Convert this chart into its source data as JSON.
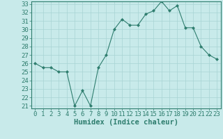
{
  "x": [
    0,
    1,
    2,
    3,
    4,
    5,
    6,
    7,
    8,
    9,
    10,
    11,
    12,
    13,
    14,
    15,
    16,
    17,
    18,
    19,
    20,
    21,
    22,
    23
  ],
  "y": [
    26.0,
    25.5,
    25.5,
    25.0,
    25.0,
    21.0,
    22.8,
    21.0,
    25.5,
    27.0,
    30.0,
    31.2,
    30.5,
    30.5,
    31.8,
    32.2,
    33.3,
    32.2,
    32.8,
    30.2,
    30.2,
    28.0,
    27.0,
    26.5
  ],
  "line_color": "#2e7d6e",
  "marker": "D",
  "marker_size": 2.0,
  "bg_color": "#c8eaea",
  "grid_color": "#a8d4d4",
  "xlabel": "Humidex (Indice chaleur)",
  "ylim_min": 21,
  "ylim_max": 33,
  "xlim_min": -0.5,
  "xlim_max": 23.5,
  "yticks": [
    21,
    22,
    23,
    24,
    25,
    26,
    27,
    28,
    29,
    30,
    31,
    32,
    33
  ],
  "xticks": [
    0,
    1,
    2,
    3,
    4,
    5,
    6,
    7,
    8,
    9,
    10,
    11,
    12,
    13,
    14,
    15,
    16,
    17,
    18,
    19,
    20,
    21,
    22,
    23
  ],
  "tick_color": "#2e7d6e",
  "label_fontsize": 6.5,
  "xlabel_fontsize": 7.5,
  "spine_color": "#2e7d6e"
}
